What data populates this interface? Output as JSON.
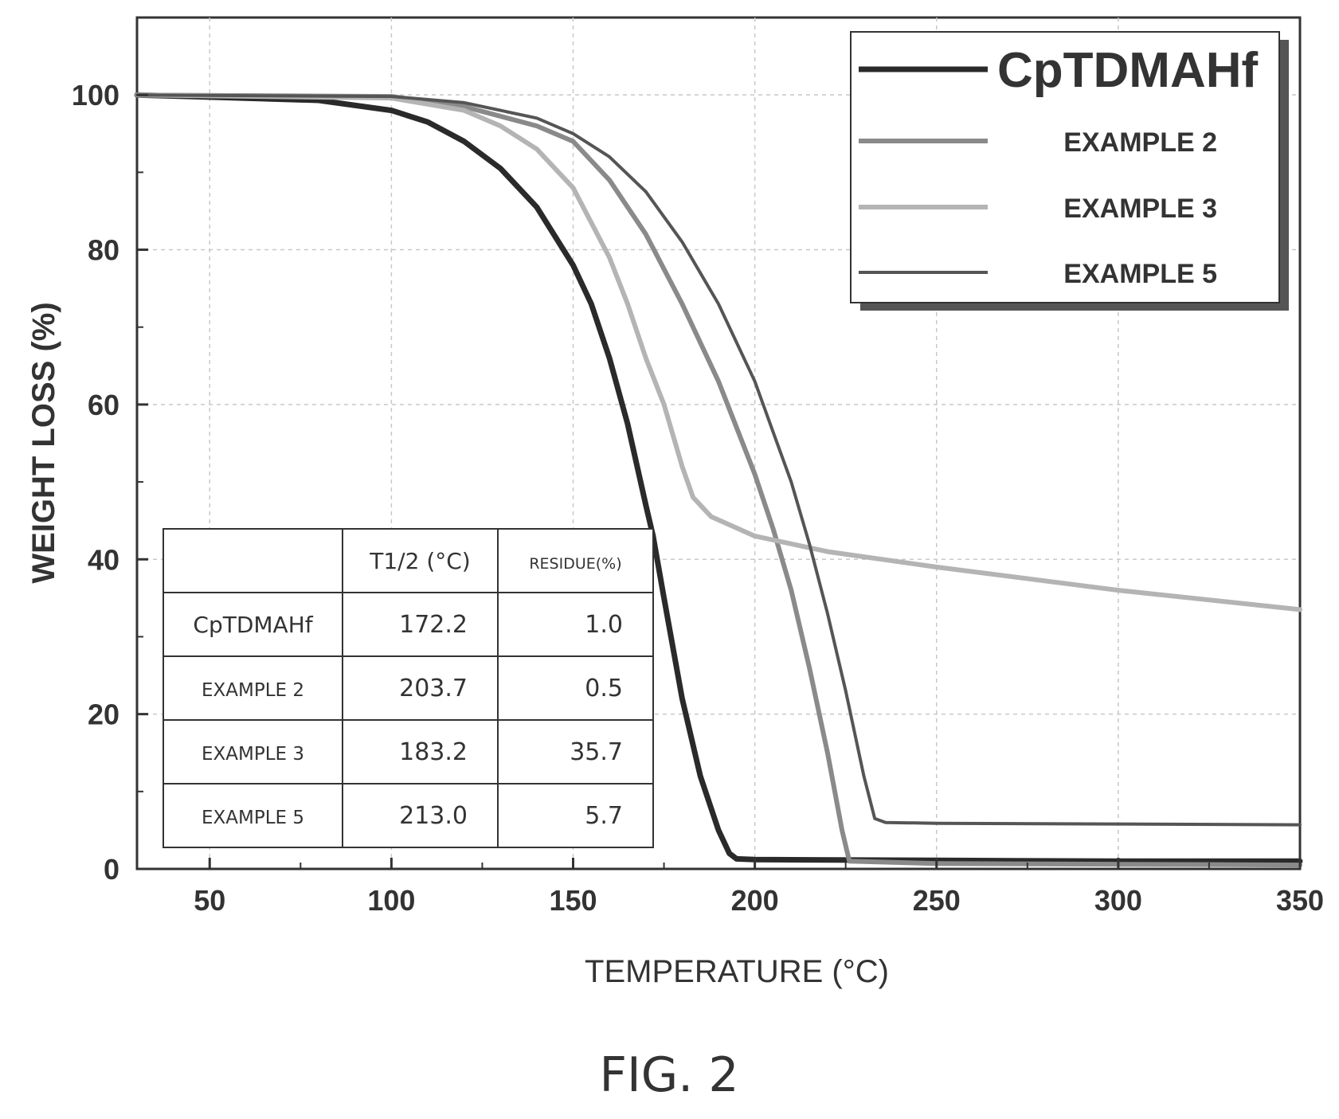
{
  "chart_data": {
    "type": "line",
    "xlabel": "TEMPERATURE (°C)",
    "ylabel": "WEIGHT LOSS (%)",
    "xlim": [
      30,
      350
    ],
    "ylim": [
      0,
      110
    ],
    "x_ticks": [
      50,
      100,
      150,
      200,
      250,
      300,
      350
    ],
    "y_ticks": [
      0,
      20,
      40,
      60,
      80,
      100
    ],
    "grid": true,
    "legend_position": "top-right",
    "series": [
      {
        "name": "CpTDMAHf",
        "color": "#2a2a2a",
        "x": [
          30,
          80,
          100,
          110,
          120,
          130,
          140,
          150,
          155,
          160,
          165,
          170,
          172,
          175,
          180,
          185,
          190,
          193,
          195,
          200,
          250,
          300,
          350
        ],
        "y": [
          100,
          99.3,
          98,
          96.5,
          94,
          90.5,
          85.5,
          78,
          73,
          66,
          57.5,
          47,
          43,
          35,
          22,
          12,
          5,
          2,
          1.3,
          1.2,
          1.1,
          1.0,
          1.0
        ]
      },
      {
        "name": "EXAMPLE 2",
        "color": "#8a8a8a",
        "x": [
          30,
          100,
          120,
          140,
          150,
          160,
          170,
          180,
          190,
          200,
          205,
          210,
          215,
          220,
          224,
          226,
          250,
          300,
          350
        ],
        "y": [
          100,
          99.8,
          98.5,
          96,
          94,
          89,
          82,
          73,
          63,
          51,
          44,
          36,
          26,
          15,
          5,
          1,
          0.7,
          0.6,
          0.5
        ]
      },
      {
        "name": "EXAMPLE 3",
        "color": "#b4b4b4",
        "x": [
          30,
          100,
          120,
          130,
          140,
          150,
          160,
          165,
          170,
          175,
          180,
          183,
          185,
          188,
          200,
          220,
          250,
          300,
          350
        ],
        "y": [
          100,
          99.6,
          98,
          96,
          93,
          88,
          79,
          73,
          66,
          60,
          52,
          48,
          47,
          45.5,
          43,
          41,
          39,
          36,
          33.5
        ]
      },
      {
        "name": "EXAMPLE 5",
        "color": "#555555",
        "x": [
          30,
          100,
          120,
          130,
          140,
          150,
          160,
          170,
          180,
          190,
          200,
          205,
          210,
          215,
          220,
          225,
          230,
          233,
          236,
          250,
          300,
          350
        ],
        "y": [
          100,
          99.8,
          99,
          98,
          97,
          95,
          92,
          87.5,
          81,
          73,
          63,
          56.5,
          50,
          42,
          33,
          23,
          12,
          6.5,
          6,
          5.9,
          5.8,
          5.7
        ]
      }
    ],
    "table": {
      "headers": [
        "",
        "T1/2 (°C)",
        "RESIDUE(%)"
      ],
      "rows": [
        [
          "CpTDMAHf",
          "172.2",
          "1.0"
        ],
        [
          "EXAMPLE 2",
          "203.7",
          "0.5"
        ],
        [
          "EXAMPLE 3",
          "183.2",
          "35.7"
        ],
        [
          "EXAMPLE 5",
          "213.0",
          "5.7"
        ]
      ]
    }
  },
  "caption": "FIG. 2"
}
